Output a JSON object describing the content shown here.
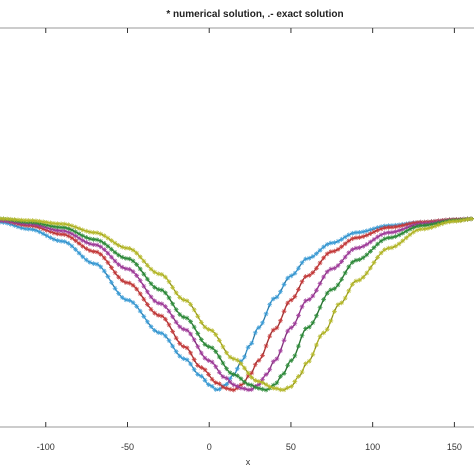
{
  "chart_data": {
    "type": "line",
    "title": "* numerical solution, .- exact solution",
    "xlabel": "x",
    "ylabel": "",
    "xlim": [
      -128,
      162
    ],
    "xticks": [
      -100,
      -50,
      0,
      50,
      100,
      150
    ],
    "xtick_labels": [
      "-100",
      "-50",
      "0",
      "50",
      "100",
      "150"
    ],
    "grid": false,
    "markers": {
      "numerical": "asterisk",
      "exact": "dot-dash"
    },
    "series": [
      {
        "color": "#3a9bd5",
        "x": [
          -128,
          -110,
          -90,
          -70,
          -50,
          -30,
          -15,
          -5,
          0,
          5,
          10,
          15,
          20,
          25,
          30,
          40,
          50,
          60,
          75,
          90,
          110,
          130,
          150,
          162
        ],
        "y": [
          0.97,
          0.93,
          0.86,
          0.73,
          0.52,
          0.33,
          0.18,
          0.08,
          0.03,
          0.0,
          0.03,
          0.09,
          0.17,
          0.26,
          0.36,
          0.53,
          0.66,
          0.76,
          0.85,
          0.91,
          0.95,
          0.97,
          0.985,
          0.99
        ]
      },
      {
        "color": "#c43a3a",
        "x": [
          -128,
          -110,
          -90,
          -70,
          -50,
          -30,
          -15,
          -5,
          5,
          10,
          15,
          20,
          25,
          30,
          40,
          50,
          60,
          75,
          90,
          110,
          130,
          150,
          162
        ],
        "y": [
          0.98,
          0.95,
          0.9,
          0.8,
          0.62,
          0.43,
          0.25,
          0.13,
          0.04,
          0.01,
          0.0,
          0.03,
          0.09,
          0.17,
          0.35,
          0.52,
          0.66,
          0.8,
          0.88,
          0.94,
          0.97,
          0.985,
          0.99
        ]
      },
      {
        "color": "#a03c9a",
        "x": [
          -128,
          -110,
          -90,
          -70,
          -50,
          -30,
          -15,
          0,
          10,
          15,
          20,
          25,
          30,
          35,
          40,
          50,
          60,
          75,
          90,
          110,
          130,
          150,
          162
        ],
        "y": [
          0.98,
          0.96,
          0.92,
          0.84,
          0.7,
          0.5,
          0.35,
          0.17,
          0.07,
          0.03,
          0.01,
          0.0,
          0.03,
          0.09,
          0.17,
          0.36,
          0.52,
          0.7,
          0.82,
          0.91,
          0.96,
          0.98,
          0.99
        ]
      },
      {
        "color": "#2e8b3a",
        "x": [
          -128,
          -110,
          -90,
          -70,
          -50,
          -30,
          -15,
          0,
          15,
          25,
          30,
          35,
          40,
          45,
          50,
          60,
          75,
          90,
          110,
          130,
          150,
          162
        ],
        "y": [
          0.99,
          0.97,
          0.94,
          0.87,
          0.76,
          0.58,
          0.42,
          0.25,
          0.09,
          0.03,
          0.01,
          0.0,
          0.03,
          0.09,
          0.17,
          0.36,
          0.58,
          0.75,
          0.88,
          0.95,
          0.98,
          0.99
        ]
      },
      {
        "color": "#b5b82a",
        "x": [
          -128,
          -110,
          -90,
          -70,
          -50,
          -30,
          -15,
          0,
          15,
          30,
          40,
          45,
          50,
          55,
          60,
          70,
          80,
          90,
          110,
          130,
          150,
          162
        ],
        "y": [
          0.99,
          0.98,
          0.96,
          0.91,
          0.82,
          0.67,
          0.52,
          0.35,
          0.18,
          0.05,
          0.01,
          0.0,
          0.02,
          0.08,
          0.16,
          0.33,
          0.5,
          0.63,
          0.82,
          0.93,
          0.975,
          0.99
        ]
      }
    ]
  }
}
